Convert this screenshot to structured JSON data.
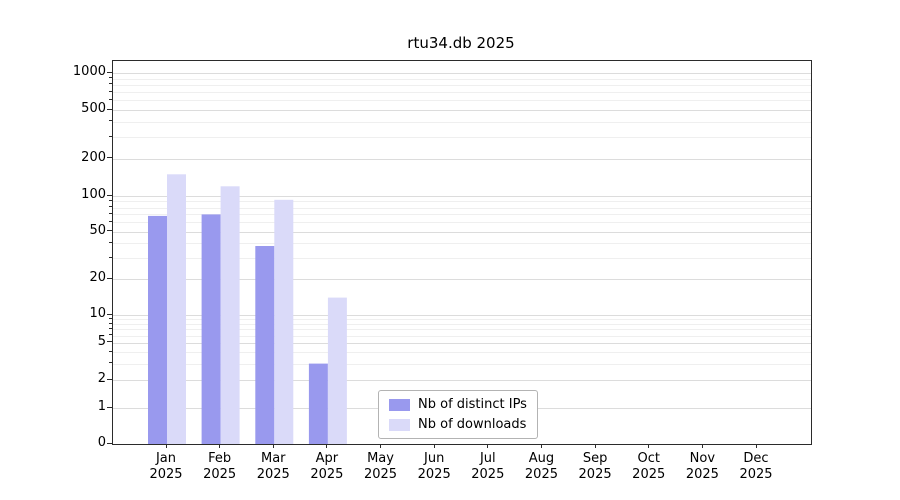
{
  "chart_data": {
    "type": "bar",
    "title": "rtu34.db 2025",
    "categories": [
      "Jan",
      "Feb",
      "Mar",
      "Apr",
      "May",
      "Jun",
      "Jul",
      "Aug",
      "Sep",
      "Oct",
      "Nov",
      "Dec"
    ],
    "x_tick_year": "2025",
    "series": [
      {
        "name": "Nb of distinct IPs",
        "color": "#9999ee",
        "values": [
          68,
          70,
          38,
          3,
          0,
          0,
          0,
          0,
          0,
          0,
          0,
          0
        ]
      },
      {
        "name": "Nb of downloads",
        "color": "#dadaf9",
        "values": [
          150,
          120,
          93,
          14,
          0,
          0,
          0,
          0,
          0,
          0,
          0,
          0
        ]
      }
    ],
    "y_ticks": [
      0,
      1,
      2,
      5,
      10,
      20,
      50,
      100,
      200,
      500,
      1000
    ],
    "y_scale": "symlog",
    "ylim": [
      0,
      1500
    ],
    "grid": true,
    "legend": {
      "position": "lower center",
      "entries": [
        "Nb of distinct IPs",
        "Nb of downloads"
      ]
    }
  }
}
